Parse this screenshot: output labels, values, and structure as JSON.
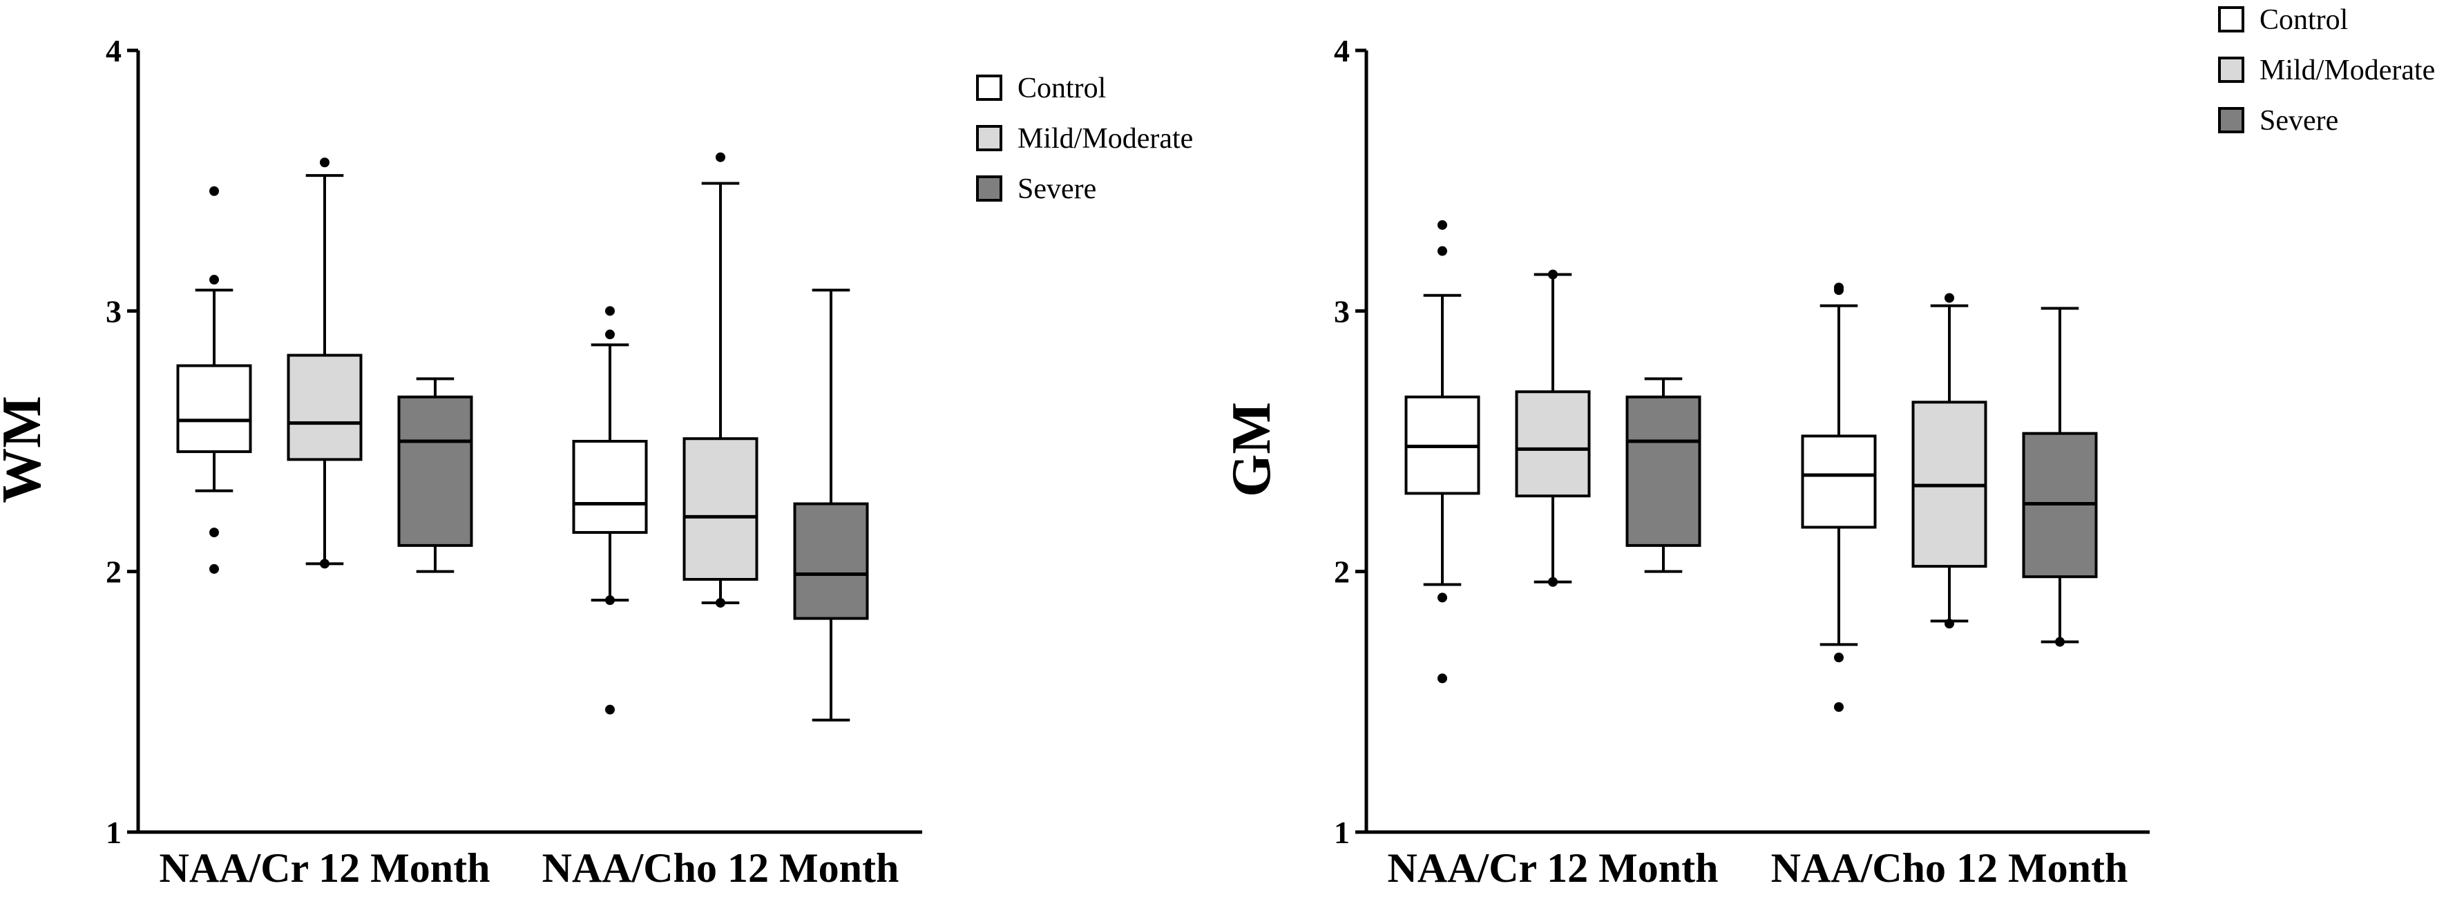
{
  "colors": {
    "Control": "#ffffff",
    "Mild/Moderate": "#d9d9d9",
    "Severe": "#7f7f7f",
    "axis": "#000000"
  },
  "chart_data": [
    {
      "type": "box",
      "ylabel": "WM",
      "ylim": [
        1,
        4
      ],
      "yticks": [
        "1",
        "2",
        "3",
        "4"
      ],
      "categories": [
        "NAA/Cr 12 Month",
        "NAA/Cho 12 Month"
      ],
      "legend": {
        "placement": "top-right",
        "entries": [
          "Control",
          "Mild/Moderate",
          "Severe"
        ]
      },
      "series": [
        {
          "name": "Control",
          "boxes": [
            {
              "category": "NAA/Cr 12 Month",
              "whisker_low": 2.31,
              "q1": 2.46,
              "median": 2.58,
              "q3": 2.79,
              "whisker_high": 3.08,
              "outliers": [
                2.01,
                2.15,
                3.12,
                3.46
              ]
            },
            {
              "category": "NAA/Cho 12 Month",
              "whisker_low": 1.89,
              "q1": 2.15,
              "median": 2.26,
              "q3": 2.5,
              "whisker_high": 2.87,
              "outliers": [
                1.47,
                1.89,
                2.91,
                3.0
              ]
            }
          ]
        },
        {
          "name": "Mild/Moderate",
          "boxes": [
            {
              "category": "NAA/Cr 12 Month",
              "whisker_low": 2.03,
              "q1": 2.43,
              "median": 2.57,
              "q3": 2.83,
              "whisker_high": 3.52,
              "outliers": [
                2.03,
                3.57
              ]
            },
            {
              "category": "NAA/Cho 12 Month",
              "whisker_low": 1.88,
              "q1": 1.97,
              "median": 2.21,
              "q3": 2.51,
              "whisker_high": 3.49,
              "outliers": [
                1.88,
                3.59
              ]
            }
          ]
        },
        {
          "name": "Severe",
          "boxes": [
            {
              "category": "NAA/Cr 12 Month",
              "whisker_low": 2.0,
              "q1": 2.1,
              "median": 2.5,
              "q3": 2.67,
              "whisker_high": 2.74,
              "outliers": []
            },
            {
              "category": "NAA/Cho 12 Month",
              "whisker_low": 1.43,
              "q1": 1.82,
              "median": 1.99,
              "q3": 2.26,
              "whisker_high": 3.08,
              "outliers": []
            }
          ]
        }
      ]
    },
    {
      "type": "box",
      "ylabel": "GM",
      "ylim": [
        1,
        4
      ],
      "yticks": [
        "1",
        "2",
        "3",
        "4"
      ],
      "categories": [
        "NAA/Cr 12 Month",
        "NAA/Cho 12 Month"
      ],
      "legend": {
        "placement": "top-right",
        "entries": [
          "Control",
          "Mild/Moderate",
          "Severe"
        ]
      },
      "series": [
        {
          "name": "Control",
          "boxes": [
            {
              "category": "NAA/Cr 12 Month",
              "whisker_low": 1.95,
              "q1": 2.3,
              "median": 2.48,
              "q3": 2.67,
              "whisker_high": 3.06,
              "outliers": [
                1.59,
                1.9,
                3.23,
                3.33
              ]
            },
            {
              "category": "NAA/Cho 12 Month",
              "whisker_low": 1.72,
              "q1": 2.17,
              "median": 2.37,
              "q3": 2.52,
              "whisker_high": 3.02,
              "outliers": [
                1.48,
                1.67,
                3.08,
                3.09
              ]
            }
          ]
        },
        {
          "name": "Mild/Moderate",
          "boxes": [
            {
              "category": "NAA/Cr 12 Month",
              "whisker_low": 1.96,
              "q1": 2.29,
              "median": 2.47,
              "q3": 2.69,
              "whisker_high": 3.14,
              "outliers": [
                1.96,
                3.14
              ]
            },
            {
              "category": "NAA/Cho 12 Month",
              "whisker_low": 1.81,
              "q1": 2.02,
              "median": 2.33,
              "q3": 2.65,
              "whisker_high": 3.02,
              "outliers": [
                1.8,
                3.05
              ]
            }
          ]
        },
        {
          "name": "Severe",
          "boxes": [
            {
              "category": "NAA/Cr 12 Month",
              "whisker_low": 2.0,
              "q1": 2.1,
              "median": 2.5,
              "q3": 2.67,
              "whisker_high": 2.74,
              "outliers": []
            },
            {
              "category": "NAA/Cho 12 Month",
              "whisker_low": 1.73,
              "q1": 1.98,
              "median": 2.26,
              "q3": 2.53,
              "whisker_high": 3.01,
              "outliers": [
                1.73
              ]
            }
          ]
        }
      ]
    }
  ]
}
